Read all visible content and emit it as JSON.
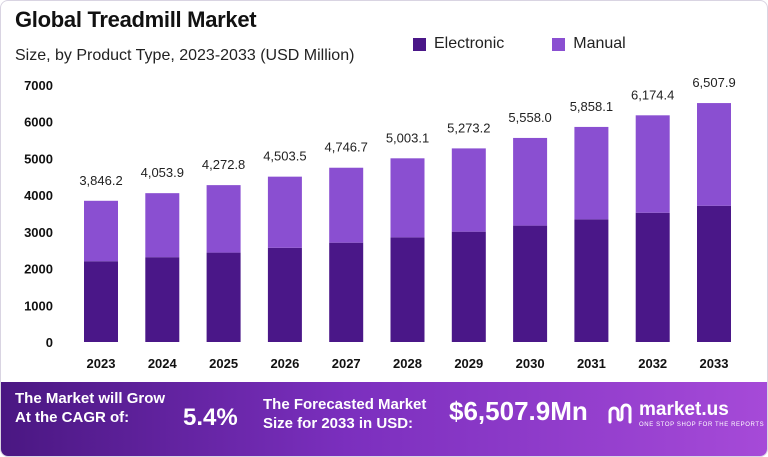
{
  "chart_data": {
    "type": "bar",
    "stacked": true,
    "title": "Global Treadmill Market",
    "subtitle": "Size, by Product Type, 2023-2033 (USD Million)",
    "categories": [
      "2023",
      "2024",
      "2025",
      "2026",
      "2027",
      "2028",
      "2029",
      "2030",
      "2031",
      "2032",
      "2033"
    ],
    "series": [
      {
        "name": "Electronic",
        "values": [
          2200,
          2310,
          2435,
          2565,
          2705,
          2850,
          3005,
          3170,
          3340,
          3520,
          3710
        ],
        "color": "#4a1788"
      },
      {
        "name": "Manual",
        "values": [
          1646.2,
          1743.9,
          1837.8,
          1938.5,
          2041.7,
          2153.1,
          2268.2,
          2388.0,
          2518.1,
          2654.4,
          2797.9
        ],
        "color": "#8a4fd1"
      }
    ],
    "totals": [
      3846.2,
      4053.9,
      4272.8,
      4503.5,
      4746.7,
      5003.1,
      5273.2,
      5558.0,
      5858.1,
      6174.4,
      6507.9
    ],
    "total_labels": [
      "3,846.2",
      "4,053.9",
      "4,272.8",
      "4,503.5",
      "4,746.7",
      "5,003.1",
      "5,273.2",
      "5,558.0",
      "5,858.1",
      "6,174.4",
      "6,507.9"
    ],
    "yticks": [
      0,
      1000,
      2000,
      3000,
      4000,
      5000,
      6000,
      7000
    ],
    "ylim": [
      0,
      7000
    ],
    "grid": false,
    "legend_position": "top-right"
  },
  "footer": {
    "grow_line1": "The Market will Grow",
    "grow_line2": "At the CAGR of:",
    "cagr": "5.4%",
    "forecast_line1": "The Forecasted Market",
    "forecast_line2": "Size for 2033 in USD:",
    "forecast_value": "$6,507.9Mn",
    "brand": "market.us",
    "tagline": "ONE STOP SHOP FOR THE REPORTS"
  }
}
